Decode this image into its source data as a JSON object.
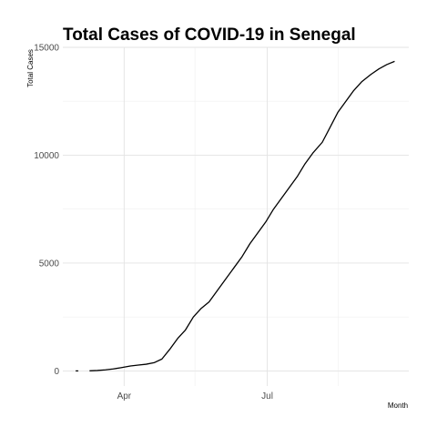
{
  "chart_data": {
    "type": "line",
    "title": "Total Cases of COVID-19 in Senegal",
    "xlabel": "Month",
    "ylabel": "Total Cases",
    "x_axis": {
      "type": "date",
      "range": [
        "2020-02-22",
        "2020-09-29"
      ],
      "ticks": [
        {
          "date": "2020-04-01",
          "label": "Apr"
        },
        {
          "date": "2020-07-01",
          "label": "Jul"
        }
      ],
      "minor_gridlines": [
        "2020-05-16",
        "2020-08-15"
      ]
    },
    "y_axis": {
      "range": [
        -700,
        15000
      ],
      "ticks": [
        {
          "value": 0,
          "label": "0"
        },
        {
          "value": 5000,
          "label": "5000"
        },
        {
          "value": 10000,
          "label": "10000"
        },
        {
          "value": 15000,
          "label": "15000"
        }
      ],
      "minor_gridlines": [
        2500,
        7500,
        12500
      ]
    },
    "grid": true,
    "legend": "none",
    "series": [
      {
        "color": "#000000",
        "points": [
          {
            "x": "2020-03-02",
            "y": 1
          },
          {
            "x": "2020-03-10",
            "y": 4
          },
          {
            "x": "2020-03-15",
            "y": 20
          },
          {
            "x": "2020-03-20",
            "y": 50
          },
          {
            "x": "2020-03-25",
            "y": 90
          },
          {
            "x": "2020-03-30",
            "y": 150
          },
          {
            "x": "2020-04-05",
            "y": 230
          },
          {
            "x": "2020-04-10",
            "y": 270
          },
          {
            "x": "2020-04-15",
            "y": 310
          },
          {
            "x": "2020-04-20",
            "y": 380
          },
          {
            "x": "2020-04-25",
            "y": 550
          },
          {
            "x": "2020-04-30",
            "y": 1000
          },
          {
            "x": "2020-05-05",
            "y": 1500
          },
          {
            "x": "2020-05-10",
            "y": 1900
          },
          {
            "x": "2020-05-15",
            "y": 2500
          },
          {
            "x": "2020-05-20",
            "y": 2900
          },
          {
            "x": "2020-05-25",
            "y": 3200
          },
          {
            "x": "2020-05-30",
            "y": 3700
          },
          {
            "x": "2020-06-05",
            "y": 4300
          },
          {
            "x": "2020-06-10",
            "y": 4800
          },
          {
            "x": "2020-06-15",
            "y": 5300
          },
          {
            "x": "2020-06-20",
            "y": 5900
          },
          {
            "x": "2020-06-25",
            "y": 6400
          },
          {
            "x": "2020-06-30",
            "y": 6900
          },
          {
            "x": "2020-07-05",
            "y": 7500
          },
          {
            "x": "2020-07-10",
            "y": 8000
          },
          {
            "x": "2020-07-15",
            "y": 8500
          },
          {
            "x": "2020-07-20",
            "y": 9000
          },
          {
            "x": "2020-07-25",
            "y": 9600
          },
          {
            "x": "2020-07-30",
            "y": 10100
          },
          {
            "x": "2020-08-05",
            "y": 10600
          },
          {
            "x": "2020-08-10",
            "y": 11300
          },
          {
            "x": "2020-08-15",
            "y": 12000
          },
          {
            "x": "2020-08-20",
            "y": 12500
          },
          {
            "x": "2020-08-25",
            "y": 13000
          },
          {
            "x": "2020-08-30",
            "y": 13400
          },
          {
            "x": "2020-09-05",
            "y": 13750
          },
          {
            "x": "2020-09-10",
            "y": 14000
          },
          {
            "x": "2020-09-15",
            "y": 14200
          },
          {
            "x": "2020-09-20",
            "y": 14350
          }
        ]
      }
    ]
  }
}
